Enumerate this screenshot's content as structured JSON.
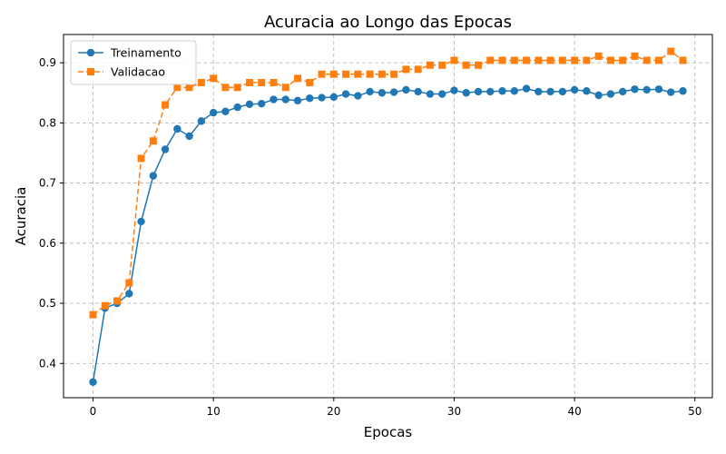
{
  "chart_data": {
    "type": "line",
    "title": "Acuracia ao Longo das Epocas",
    "xlabel": "Epocas",
    "ylabel": "Acuracia",
    "xlim": [
      -2.45,
      51.45
    ],
    "ylim": [
      0.343,
      0.947
    ],
    "xticks": [
      0,
      10,
      20,
      30,
      40,
      50
    ],
    "yticks": [
      0.4,
      0.5,
      0.6,
      0.7,
      0.8,
      0.9
    ],
    "grid": true,
    "legend_position": "top-left",
    "x": [
      0,
      1,
      2,
      3,
      4,
      5,
      6,
      7,
      8,
      9,
      10,
      11,
      12,
      13,
      14,
      15,
      16,
      17,
      18,
      19,
      20,
      21,
      22,
      23,
      24,
      25,
      26,
      27,
      28,
      29,
      30,
      31,
      32,
      33,
      34,
      35,
      36,
      37,
      38,
      39,
      40,
      41,
      42,
      43,
      44,
      45,
      46,
      47,
      48,
      49
    ],
    "series": [
      {
        "name": "Treinamento",
        "color": "#1f77b4",
        "line_style": "solid",
        "marker": "circle",
        "values": [
          0.369,
          0.492,
          0.5,
          0.516,
          0.636,
          0.712,
          0.756,
          0.79,
          0.778,
          0.803,
          0.817,
          0.819,
          0.826,
          0.831,
          0.832,
          0.839,
          0.839,
          0.837,
          0.841,
          0.842,
          0.843,
          0.848,
          0.845,
          0.852,
          0.85,
          0.851,
          0.855,
          0.852,
          0.848,
          0.848,
          0.854,
          0.85,
          0.852,
          0.852,
          0.853,
          0.853,
          0.857,
          0.852,
          0.852,
          0.852,
          0.855,
          0.853,
          0.846,
          0.848,
          0.852,
          0.856,
          0.855,
          0.856,
          0.851,
          0.853
        ]
      },
      {
        "name": "Validacao",
        "color": "#ff7f0e",
        "line_style": "dashed",
        "marker": "square",
        "values": [
          0.481,
          0.496,
          0.504,
          0.534,
          0.741,
          0.77,
          0.83,
          0.859,
          0.859,
          0.867,
          0.874,
          0.859,
          0.859,
          0.867,
          0.867,
          0.867,
          0.859,
          0.874,
          0.867,
          0.881,
          0.881,
          0.881,
          0.881,
          0.881,
          0.881,
          0.881,
          0.889,
          0.889,
          0.896,
          0.896,
          0.904,
          0.896,
          0.896,
          0.904,
          0.904,
          0.904,
          0.904,
          0.904,
          0.904,
          0.904,
          0.904,
          0.904,
          0.911,
          0.904,
          0.904,
          0.911,
          0.904,
          0.904,
          0.919,
          0.904
        ]
      }
    ]
  }
}
